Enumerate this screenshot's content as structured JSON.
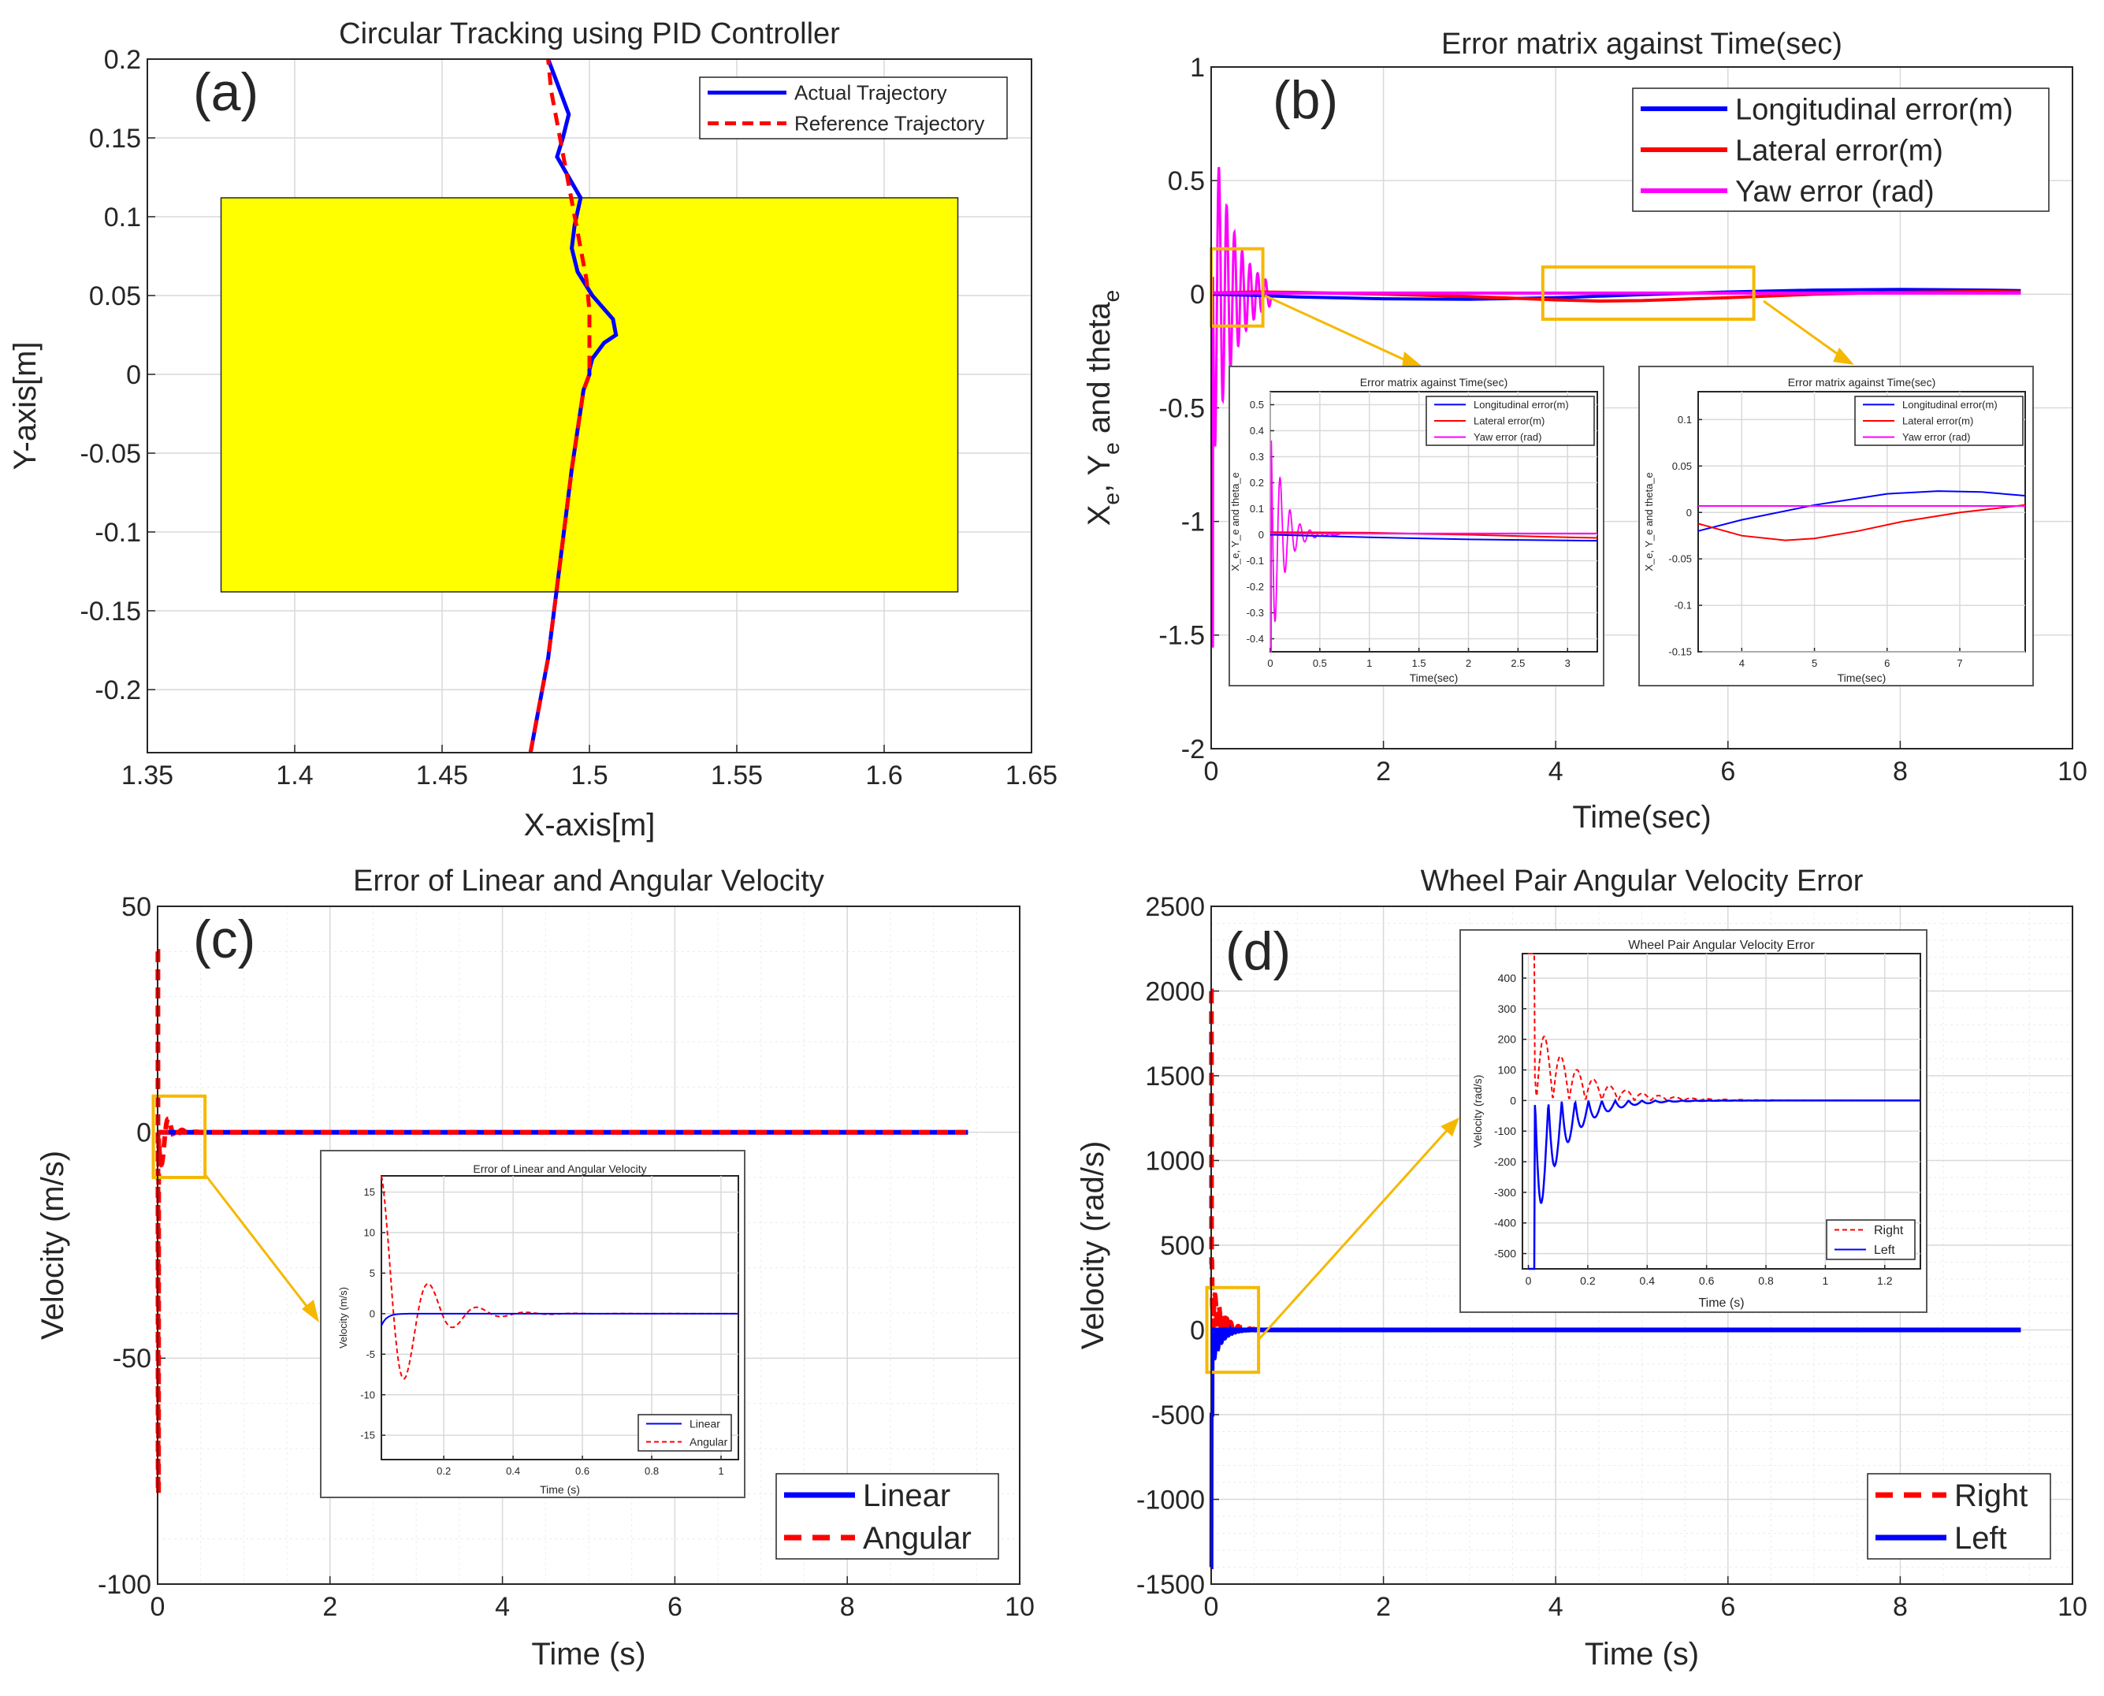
{
  "chart_data": [
    {
      "id": "a",
      "type": "line",
      "panel_label": "(a)",
      "title": "Circular Tracking using PID Controller",
      "xlabel": "X-axis[m]",
      "ylabel": "Y-axis[m]",
      "xlim": [
        1.35,
        1.65
      ],
      "ylim": [
        -0.24,
        0.2
      ],
      "xticks": [
        1.35,
        1.4,
        1.45,
        1.5,
        1.55,
        1.6,
        1.65
      ],
      "xtick_labels": [
        "1.35",
        "1.4",
        "1.45",
        "1.5",
        "1.55",
        "1.6",
        "1.65"
      ],
      "yticks": [
        -0.2,
        -0.15,
        -0.1,
        -0.05,
        0,
        0.05,
        0.1,
        0.15,
        0.2
      ],
      "ytick_labels": [
        "-0.2",
        "-0.15",
        "-0.1",
        "-0.05",
        "0",
        "0.05",
        "0.1",
        "0.15",
        "0.2"
      ],
      "grid": true,
      "legend_position": "top-right",
      "yellow_rect": {
        "x": [
          1.375,
          1.625
        ],
        "y": [
          -0.138,
          0.112
        ],
        "color": "#ffff00"
      },
      "series": [
        {
          "name": "Actual Trajectory",
          "color": "#0000ff",
          "style": "solid",
          "x": [
            1.48,
            1.486,
            1.49,
            1.494,
            1.498,
            1.5,
            1.5,
            1.5,
            1.501,
            1.505,
            1.509,
            1.508,
            1.501,
            1.496,
            1.494,
            1.495,
            1.497,
            1.493,
            1.489,
            1.491,
            1.493,
            1.489,
            1.486
          ],
          "y": [
            -0.24,
            -0.18,
            -0.12,
            -0.06,
            -0.01,
            0.0,
            0.0,
            0.003,
            0.01,
            0.02,
            0.025,
            0.035,
            0.05,
            0.065,
            0.08,
            0.095,
            0.112,
            0.125,
            0.138,
            0.15,
            0.165,
            0.185,
            0.2
          ]
        },
        {
          "name": "Reference Trajectory",
          "color": "#ff0000",
          "style": "dashed",
          "x": [
            1.48,
            1.486,
            1.49,
            1.494,
            1.498,
            1.5,
            1.5,
            1.5,
            1.499,
            1.497,
            1.495,
            1.493,
            1.491,
            1.489,
            1.487,
            1.486
          ],
          "y": [
            -0.24,
            -0.18,
            -0.12,
            -0.06,
            -0.01,
            0.0,
            0.02,
            0.04,
            0.06,
            0.08,
            0.1,
            0.12,
            0.14,
            0.16,
            0.18,
            0.2
          ]
        }
      ]
    },
    {
      "id": "b",
      "type": "line",
      "panel_label": "(b)",
      "title": "Error matrix against Time(sec)",
      "xlabel": "Time(sec)",
      "ylabel": "X_e, Y_e and theta_e",
      "xlim": [
        0,
        10
      ],
      "ylim": [
        -2,
        1
      ],
      "xticks": [
        0,
        2,
        4,
        6,
        8,
        10
      ],
      "xtick_labels": [
        "0",
        "2",
        "4",
        "6",
        "8",
        "10"
      ],
      "yticks": [
        -2,
        -1.5,
        -1,
        -0.5,
        0,
        0.5,
        1
      ],
      "ytick_labels": [
        "-2",
        "-1.5",
        "-1",
        "-0.5",
        "0",
        "0.5",
        "1"
      ],
      "grid": true,
      "legend_position": "top-right",
      "series": [
        {
          "name": "Longitudinal error(m)",
          "color": "#0000ff",
          "x": [
            0,
            0.5,
            1,
            2,
            3,
            4,
            5,
            6,
            7,
            8,
            8.5,
            9,
            9.4
          ],
          "y": [
            0,
            -0.005,
            -0.012,
            -0.02,
            -0.022,
            -0.015,
            -0.002,
            0.01,
            0.018,
            0.021,
            0.02,
            0.018,
            0.016
          ]
        },
        {
          "name": "Lateral error(m)",
          "color": "#ff0000",
          "x": [
            0,
            0.5,
            1,
            2,
            3,
            4,
            4.5,
            5,
            6,
            7,
            8,
            9,
            9.4
          ],
          "y": [
            0.005,
            0.01,
            0.008,
            0.0,
            -0.01,
            -0.025,
            -0.03,
            -0.028,
            -0.015,
            0.0,
            0.008,
            0.012,
            0.01
          ]
        },
        {
          "name": "Yaw error (rad)",
          "color": "#ff00ff",
          "x": [
            0,
            9.4
          ],
          "y": [
            0.005,
            0.005
          ]
        }
      ],
      "yaw_transient": {
        "start": 0.8,
        "decay": 0.25,
        "period": 0.09,
        "end": 0.7,
        "min": -1.55
      },
      "zoom_boxes": [
        {
          "x": [
            0,
            0.6
          ],
          "y": [
            -0.14,
            0.2
          ]
        },
        {
          "x": [
            3.85,
            6.3
          ],
          "y": [
            -0.11,
            0.12
          ]
        }
      ],
      "insets": [
        {
          "title": "Error matrix against Time(sec)",
          "xlabel": "Time(sec)",
          "ylabel": "X_e, Y_e and theta_e",
          "xlim": [
            0,
            3.3
          ],
          "ylim": [
            -0.45,
            0.55
          ],
          "xticks": [
            0,
            0.5,
            1,
            1.5,
            2,
            2.5,
            3
          ],
          "xtick_labels": [
            "0",
            "0.5",
            "1",
            "1.5",
            "2",
            "2.5",
            "3"
          ],
          "yticks": [
            -0.4,
            -0.3,
            -0.2,
            -0.1,
            0,
            0.1,
            0.2,
            0.3,
            0.4,
            0.5
          ],
          "ytick_labels": [
            "-0.4",
            "-0.3",
            "-0.2",
            "-0.1",
            "0",
            "0.1",
            "0.2",
            "0.3",
            "0.4",
            "0.5"
          ],
          "legend": [
            "Longitudinal error(m)",
            "Lateral error(m)",
            "Yaw error (rad)"
          ]
        },
        {
          "title": "Error matrix against Time(sec)",
          "xlabel": "Time(sec)",
          "ylabel": "X_e, Y_e and theta_e",
          "xlim": [
            3.4,
            7.9
          ],
          "ylim": [
            -0.15,
            0.13
          ],
          "xticks": [
            4,
            5,
            6,
            7
          ],
          "xtick_labels": [
            "4",
            "5",
            "6",
            "7"
          ],
          "yticks": [
            -0.15,
            -0.1,
            -0.05,
            0,
            0.05,
            0.1
          ],
          "ytick_labels": [
            "-0.15",
            "-0.1",
            "-0.05",
            "0",
            "0.05",
            "0.1"
          ],
          "legend": [
            "Longitudinal error(m)",
            "Lateral error(m)",
            "Yaw error (rad)"
          ]
        }
      ]
    },
    {
      "id": "c",
      "type": "line",
      "panel_label": "(c)",
      "title": "Error of Linear and Angular Velocity",
      "xlabel": "Time (s)",
      "ylabel": "Velocity (m/s)",
      "xlim": [
        0,
        10
      ],
      "ylim": [
        -100,
        50
      ],
      "xticks": [
        0,
        2,
        4,
        6,
        8,
        10
      ],
      "xtick_labels": [
        "0",
        "2",
        "4",
        "6",
        "8",
        "10"
      ],
      "yticks": [
        -100,
        -50,
        0,
        50
      ],
      "ytick_labels": [
        "-100",
        "-50",
        "0",
        "50"
      ],
      "grid": true,
      "legend_position": "bottom-right",
      "series": [
        {
          "name": "Linear",
          "color": "#0000ff",
          "style": "solid",
          "x": [
            0,
            9.4
          ],
          "y": [
            0,
            0
          ]
        },
        {
          "name": "Angular",
          "color": "#ff0000",
          "style": "dashed",
          "x": [
            0,
            9.4
          ],
          "y": [
            0,
            0
          ]
        }
      ],
      "angular_transient": {
        "start": 40,
        "min": -80,
        "decay": 0.09,
        "period": 0.16,
        "end": 0.55
      },
      "zoom_box": {
        "x": [
          -0.05,
          0.55
        ],
        "y": [
          -10,
          8
        ]
      },
      "inset": {
        "title": "Error of Linear and Angular Velocity",
        "xlabel": "Time (s)",
        "ylabel": "Velocity (m/s)",
        "xlim": [
          0.02,
          1.05
        ],
        "ylim": [
          -18,
          17
        ],
        "xticks": [
          0.2,
          0.4,
          0.6,
          0.8,
          1
        ],
        "xtick_labels": [
          "0.2",
          "0.4",
          "0.6",
          "0.8",
          "1"
        ],
        "yticks": [
          -15,
          -10,
          -5,
          0,
          5,
          10,
          15
        ],
        "ytick_labels": [
          "-15",
          "-10",
          "-5",
          "0",
          "5",
          "10",
          "15"
        ],
        "legend": [
          "Linear",
          "Angular"
        ]
      }
    },
    {
      "id": "d",
      "type": "line",
      "panel_label": "(d)",
      "title": "Wheel Pair Angular Velocity Error",
      "xlabel": "Time (s)",
      "ylabel": "Velocity (rad/s)",
      "xlim": [
        0,
        10
      ],
      "ylim": [
        -1500,
        2500
      ],
      "xticks": [
        0,
        2,
        4,
        6,
        8,
        10
      ],
      "xtick_labels": [
        "0",
        "2",
        "4",
        "6",
        "8",
        "10"
      ],
      "yticks": [
        -1500,
        -1000,
        -500,
        0,
        500,
        1000,
        1500,
        2000,
        2500
      ],
      "ytick_labels": [
        "-1500",
        "-1000",
        "-500",
        "0",
        "500",
        "1000",
        "1500",
        "2000",
        "2500"
      ],
      "grid": true,
      "legend_position": "bottom-right",
      "series": [
        {
          "name": "Right",
          "color": "#ff0000",
          "style": "dashed",
          "x": [
            0,
            9.4
          ],
          "y": [
            0,
            0
          ]
        },
        {
          "name": "Left",
          "color": "#0000ff",
          "style": "solid",
          "x": [
            0,
            9.4
          ],
          "y": [
            0,
            0
          ]
        }
      ],
      "right_transient": {
        "start": 2000,
        "decay": 0.12,
        "period": 0.09,
        "end": 0.7
      },
      "left_transient": {
        "start": -1400,
        "decay": 0.1,
        "period": 0.08,
        "end": 0.7
      },
      "zoom_box": {
        "x": [
          -0.05,
          0.55
        ],
        "y": [
          -250,
          250
        ]
      },
      "inset": {
        "title": "Wheel Pair Angular Velocity Error",
        "xlabel": "Time (s)",
        "ylabel": "Velocity (rad/s)",
        "xlim": [
          -0.02,
          1.32
        ],
        "ylim": [
          -550,
          480
        ],
        "xticks": [
          0,
          0.2,
          0.4,
          0.6,
          0.8,
          1,
          1.2
        ],
        "xtick_labels": [
          "0",
          "0.2",
          "0.4",
          "0.6",
          "0.8",
          "1",
          "1.2"
        ],
        "yticks": [
          -500,
          -400,
          -300,
          -200,
          -100,
          0,
          100,
          200,
          300,
          400
        ],
        "ytick_labels": [
          "-500",
          "-400",
          "-300",
          "-200",
          "-100",
          "0",
          "100",
          "200",
          "300",
          "400"
        ],
        "legend": [
          "Right",
          "Left"
        ]
      }
    }
  ]
}
